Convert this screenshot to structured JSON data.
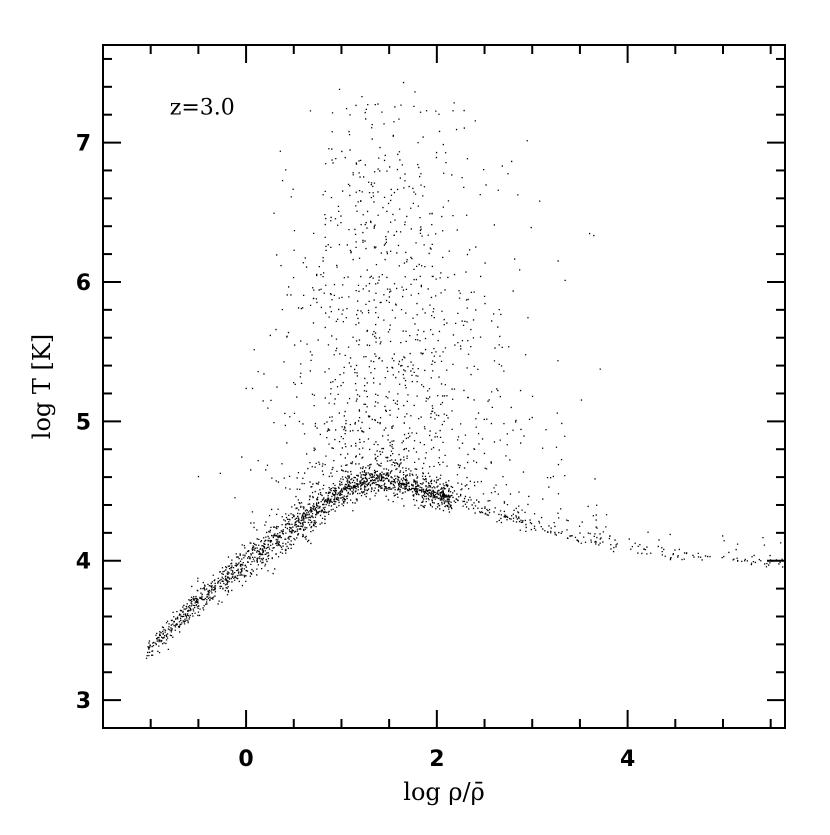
{
  "chart_data": {
    "type": "scatter",
    "title": "",
    "annotation": "z=3.0",
    "xlabel": "log ρ/ρ̄",
    "ylabel": "log T [K]",
    "xlim": [
      -1.5,
      5.65
    ],
    "ylim": [
      2.8,
      7.7
    ],
    "x_ticks": [
      0,
      2,
      4
    ],
    "x_tick_labels": [
      "0",
      "2",
      "4"
    ],
    "y_ticks": [
      3,
      4,
      5,
      6,
      7
    ],
    "y_tick_labels": [
      "3",
      "4",
      "5",
      "6",
      "7"
    ],
    "grid": false,
    "legend": "none",
    "marker_color": "#000000",
    "series_ridge": {
      "x": [
        -1.05,
        -0.5,
        0.0,
        0.5,
        1.0,
        1.3,
        1.6,
        2.0,
        2.5,
        3.0,
        3.5,
        4.0,
        4.5,
        5.0,
        5.65
      ],
      "y": [
        3.35,
        3.72,
        4.0,
        4.25,
        4.5,
        4.58,
        4.56,
        4.47,
        4.36,
        4.25,
        4.17,
        4.11,
        4.06,
        4.02,
        3.98
      ]
    }
  }
}
